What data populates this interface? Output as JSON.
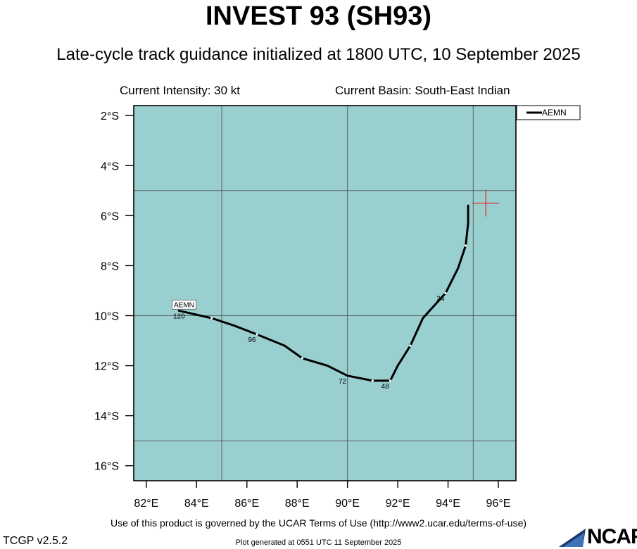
{
  "header": {
    "title": "INVEST 93 (SH93)",
    "subtitle": "Late-cycle track guidance initialized at 1800 UTC, 10 September 2025",
    "intensity": "Current Intensity: 30 kt",
    "basin": "Current Basin: South-East Indian"
  },
  "footer": {
    "terms": "Use of this product is governed by the UCAR Terms of Use (http://www2.ucar.edu/terms-of-use)",
    "version": "TCGP v2.5.2",
    "generated": "Plot generated at 0551 UTC   11 September 2025",
    "logo_text": "NCAR"
  },
  "colors": {
    "ocean": "#99cfcf",
    "track": "#000000",
    "current_position": "#ff0000",
    "grid": "#555555"
  },
  "chart_data": {
    "type": "line",
    "map": true,
    "xlim": [
      81.5,
      96.7
    ],
    "ylim": [
      -16.6,
      -1.6
    ],
    "x_ticks": [
      82,
      84,
      86,
      88,
      90,
      92,
      94,
      96
    ],
    "x_tick_labels": [
      "82°E",
      "84°E",
      "86°E",
      "88°E",
      "90°E",
      "92°E",
      "94°E",
      "96°E"
    ],
    "y_ticks": [
      -2,
      -4,
      -6,
      -8,
      -10,
      -12,
      -14,
      -16
    ],
    "y_tick_labels": [
      "2°S",
      "4°S",
      "6°S",
      "8°S",
      "10°S",
      "12°S",
      "14°S",
      "16°S"
    ],
    "grid_lon": [
      85,
      90,
      95
    ],
    "grid_lat": [
      -5,
      -10,
      -15
    ],
    "current_position": {
      "lon": 95.5,
      "lat": -5.5
    },
    "legend": {
      "position": "top-right",
      "entries": [
        "AEMN"
      ]
    },
    "series": [
      {
        "name": "AEMN",
        "points": [
          {
            "lon": 94.8,
            "lat": -5.6
          },
          {
            "lon": 94.8,
            "lat": -6.3
          },
          {
            "lon": 94.7,
            "lat": -7.2
          },
          {
            "lon": 94.4,
            "lat": -8.1
          },
          {
            "lon": 93.9,
            "lat": -9.1
          },
          {
            "lon": 93.0,
            "lat": -10.1
          },
          {
            "lon": 92.5,
            "lat": -11.2
          },
          {
            "lon": 92.0,
            "lat": -12.0
          },
          {
            "lon": 91.7,
            "lat": -12.6
          },
          {
            "lon": 91.0,
            "lat": -12.6
          },
          {
            "lon": 90.0,
            "lat": -12.4
          },
          {
            "lon": 89.2,
            "lat": -12.0
          },
          {
            "lon": 88.2,
            "lat": -11.7
          },
          {
            "lon": 87.5,
            "lat": -11.2
          },
          {
            "lon": 86.4,
            "lat": -10.75
          },
          {
            "lon": 85.5,
            "lat": -10.4
          },
          {
            "lon": 84.6,
            "lat": -10.1
          },
          {
            "lon": 83.3,
            "lat": -9.8
          }
        ],
        "tick_marks": [
          {
            "lon": 94.7,
            "lat": -7.2
          },
          {
            "lon": 93.9,
            "lat": -9.1
          },
          {
            "lon": 92.5,
            "lat": -11.2
          },
          {
            "lon": 91.7,
            "lat": -12.6
          },
          {
            "lon": 91.0,
            "lat": -12.6
          },
          {
            "lon": 88.2,
            "lat": -11.7
          },
          {
            "lon": 86.4,
            "lat": -10.75
          },
          {
            "lon": 84.6,
            "lat": -10.1
          }
        ],
        "hour_labels": [
          {
            "text": "24",
            "lon": 93.7,
            "lat": -9.3
          },
          {
            "text": "48",
            "lon": 91.5,
            "lat": -12.8
          },
          {
            "text": "72",
            "lon": 89.8,
            "lat": -12.6
          },
          {
            "text": "96",
            "lon": 86.2,
            "lat": -10.95
          },
          {
            "text": "120",
            "lon": 83.3,
            "lat": -10.0
          }
        ],
        "end_label": {
          "text": "AEMN",
          "lon": 83.5,
          "lat": -9.6
        }
      }
    ]
  }
}
